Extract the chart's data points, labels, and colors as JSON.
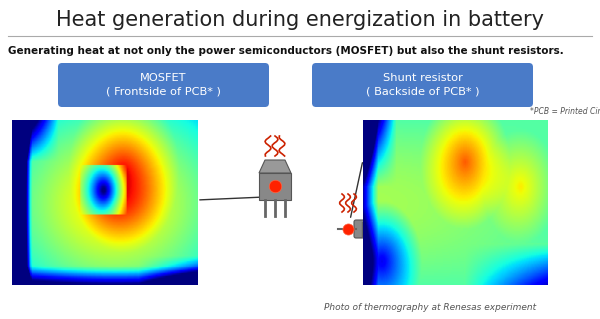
{
  "title": "Heat generation during energization in battery",
  "subtitle": "Generating heat at not only the power semiconductors (MOSFET) but also the shunt resistors.",
  "box1_label": "MOSFET\n( Frontside of PCB* )",
  "box2_label": "Shunt resistor\n( Backside of PCB* )",
  "pcb_note": "*PCB = Printed Circuit Board",
  "footer": "Photo of thermography at Renesas experiment",
  "box_color": "#4A7BC8",
  "box_text_color": "#FFFFFF",
  "title_color": "#222222",
  "subtitle_color": "#111111",
  "bg_color": "#FFFFFF",
  "separator_color": "#AAAAAA",
  "heat_color": "#CC2200",
  "icon_color": "#777777",
  "arrow_color": "#333333"
}
